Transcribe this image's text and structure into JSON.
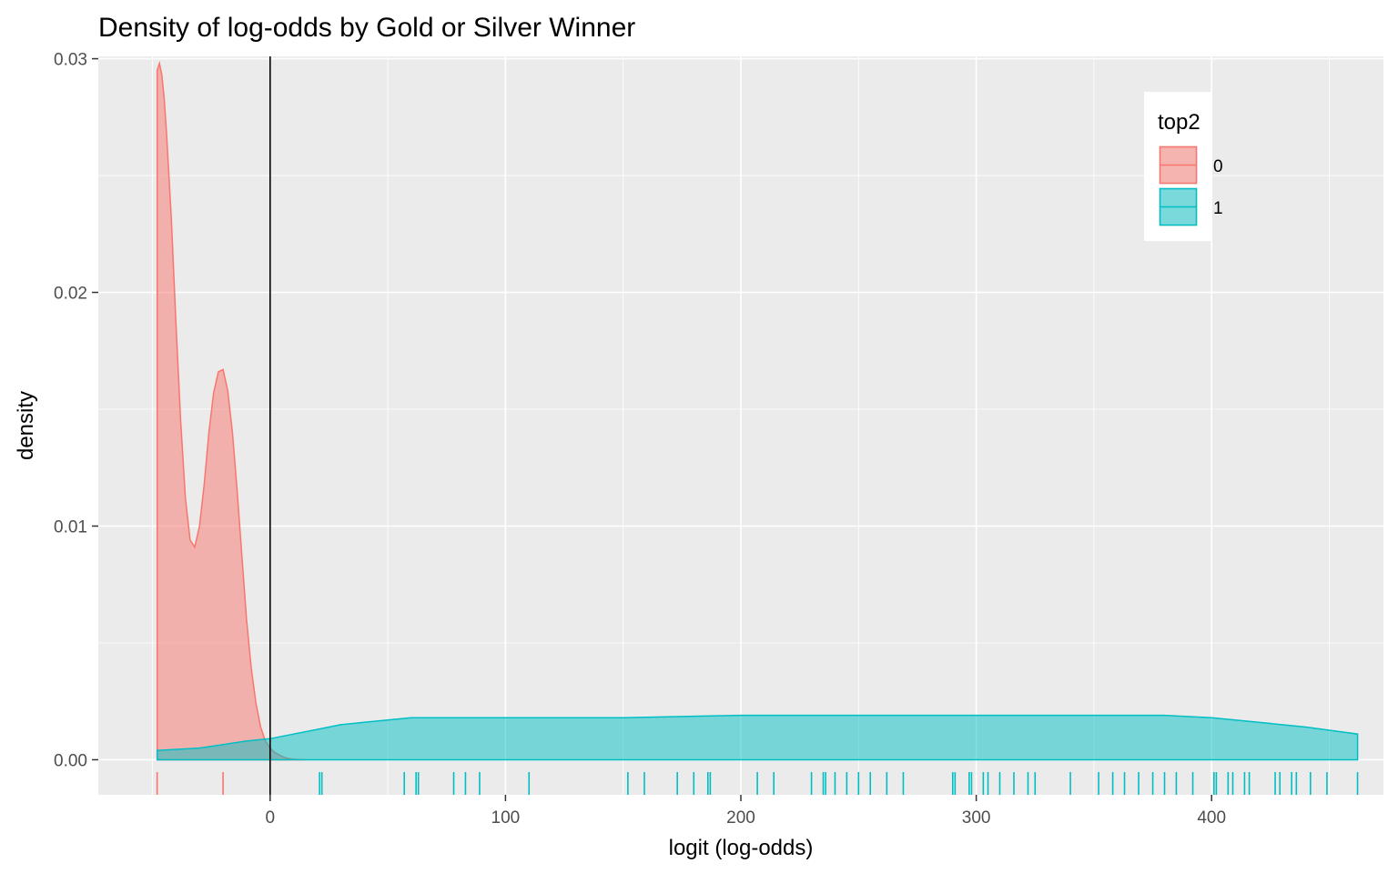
{
  "chart_data": {
    "type": "area",
    "subtype": "density",
    "title": "Density of log-odds by Gold or Silver Winner",
    "xlabel": "logit (log-odds)",
    "ylabel": "density",
    "xlim": [
      -73,
      473
    ],
    "ylim": [
      -0.0015,
      0.0301
    ],
    "x_ticks": [
      {
        "value": 0,
        "label": "0"
      },
      {
        "value": 100,
        "label": "100"
      },
      {
        "value": 200,
        "label": "200"
      },
      {
        "value": 300,
        "label": "300"
      },
      {
        "value": 400,
        "label": "400"
      }
    ],
    "y_ticks": [
      {
        "value": 0,
        "label": "0.00"
      },
      {
        "value": 0.01,
        "label": "0.01"
      },
      {
        "value": 0.02,
        "label": "0.02"
      },
      {
        "value": 0.03,
        "label": "0.03"
      }
    ],
    "grid": true,
    "vline_x": 0,
    "legend": {
      "title": "top2",
      "position": "top-right"
    },
    "series": [
      {
        "name": "0",
        "color": "#F8766D",
        "fill": "#F8766D",
        "fill_opacity": 0.5,
        "x": [
          -48,
          -47,
          -46,
          -45,
          -44,
          -42,
          -40,
          -38,
          -36,
          -34,
          -32,
          -30,
          -28,
          -26,
          -24,
          -22,
          -20,
          -18,
          -16,
          -14,
          -12,
          -10,
          -8,
          -6,
          -4,
          -2,
          0,
          2,
          4,
          6,
          8,
          10,
          15
        ],
        "values": [
          0.0295,
          0.0298,
          0.0293,
          0.0283,
          0.0268,
          0.0232,
          0.0187,
          0.0145,
          0.0112,
          0.0094,
          0.0091,
          0.01,
          0.0118,
          0.014,
          0.0157,
          0.0166,
          0.0167,
          0.0158,
          0.014,
          0.0115,
          0.0087,
          0.006,
          0.0039,
          0.0024,
          0.0014,
          0.0008,
          0.0005,
          0.0003,
          0.0002,
          0.0001,
          5e-05,
          2e-05,
          0.0
        ],
        "rug": [
          -48,
          -20
        ]
      },
      {
        "name": "1",
        "color": "#00BFC4",
        "fill": "#00BFC4",
        "fill_opacity": 0.5,
        "x": [
          -48,
          -30,
          -10,
          0,
          10,
          20,
          30,
          40,
          50,
          60,
          70,
          80,
          100,
          150,
          200,
          250,
          300,
          350,
          380,
          400,
          420,
          440,
          462
        ],
        "values": [
          0.0004,
          0.0005,
          0.0008,
          0.0009,
          0.0011,
          0.0013,
          0.0015,
          0.0016,
          0.0017,
          0.0018,
          0.0018,
          0.0018,
          0.0018,
          0.0018,
          0.0019,
          0.0019,
          0.0019,
          0.0019,
          0.0019,
          0.0018,
          0.0016,
          0.0014,
          0.0011
        ],
        "rug": [
          21,
          22,
          57,
          62,
          63,
          78,
          83,
          89,
          110,
          152,
          159,
          173,
          180,
          186,
          187,
          207,
          214,
          230,
          235,
          236,
          240,
          245,
          250,
          255,
          262,
          269,
          290,
          291,
          297,
          298,
          303,
          305,
          310,
          316,
          322,
          325,
          340,
          352,
          358,
          363,
          369,
          375,
          380,
          385,
          392,
          401,
          402,
          407,
          409,
          414,
          416,
          427,
          429,
          434,
          436,
          442,
          449,
          462
        ]
      }
    ]
  }
}
